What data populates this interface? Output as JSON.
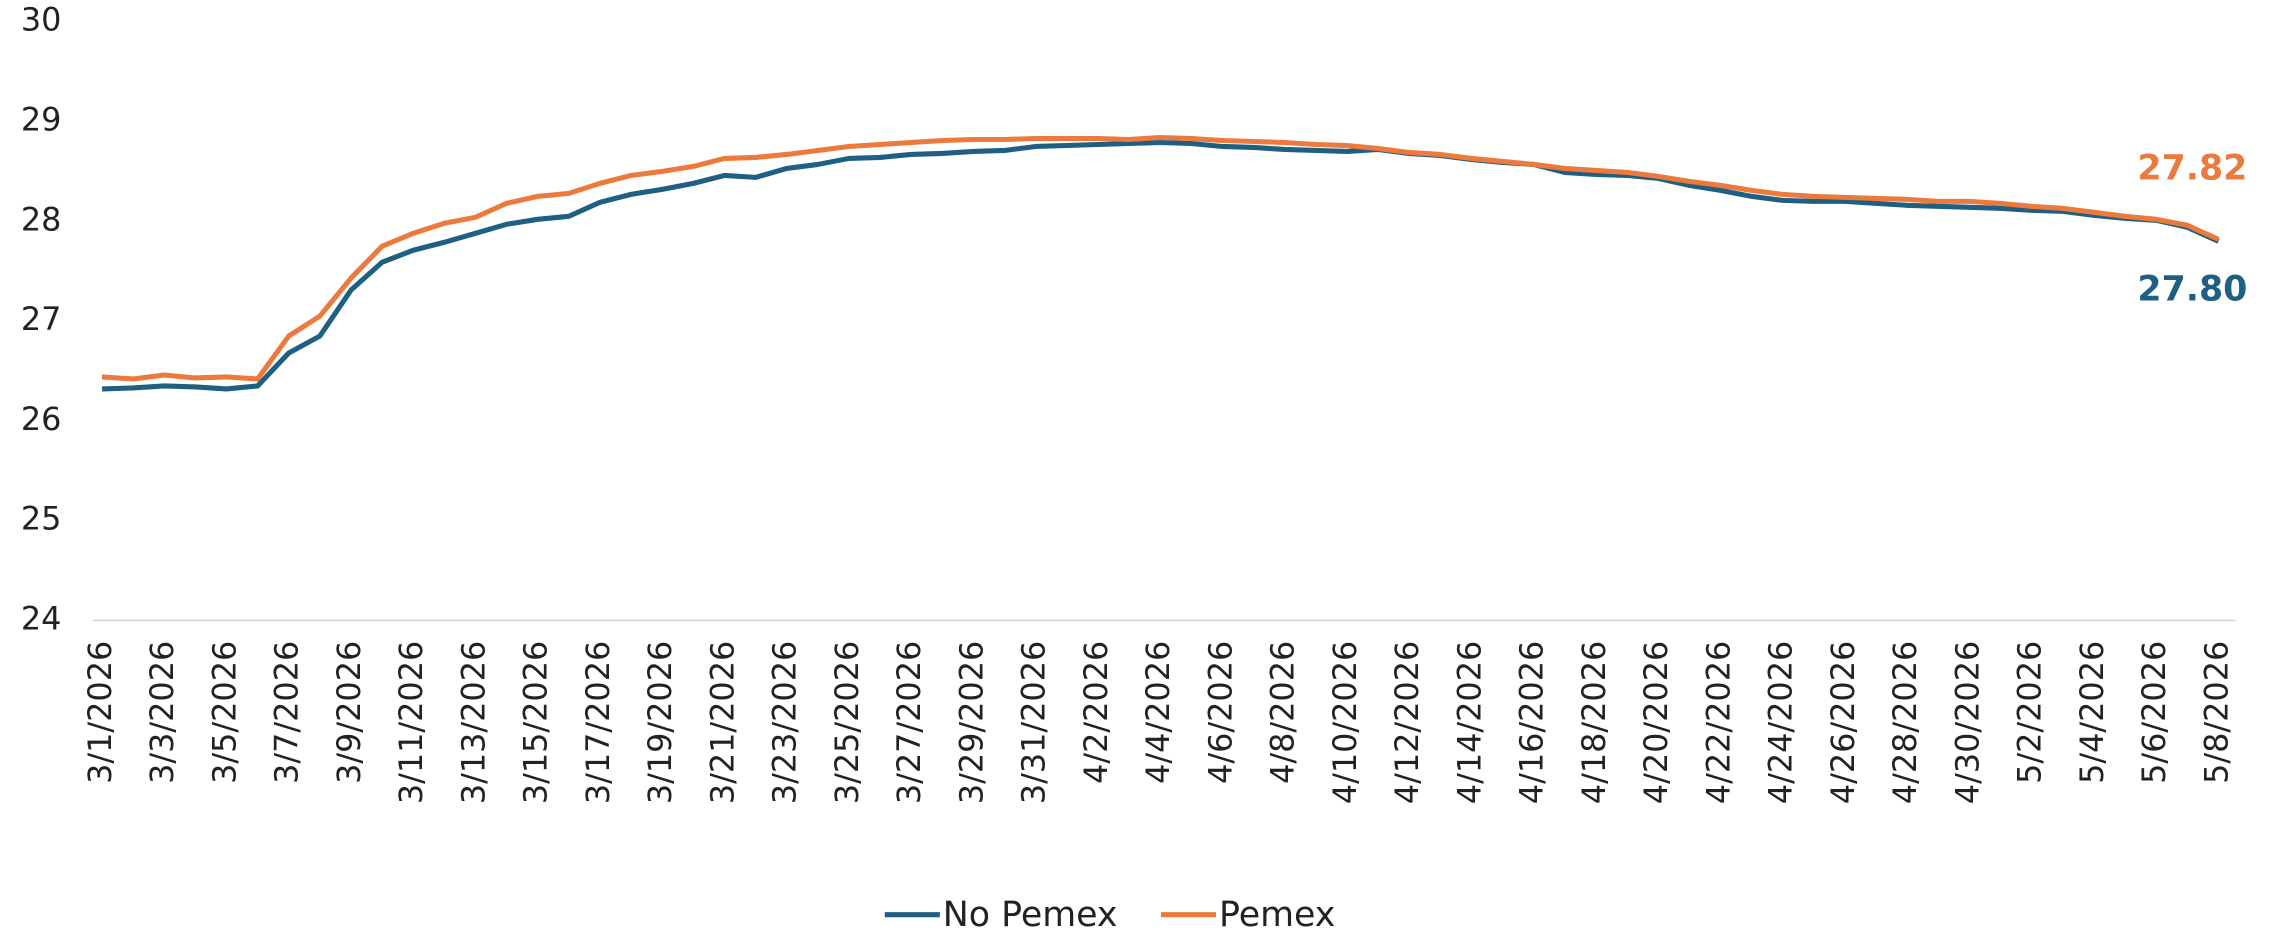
{
  "chart_data": {
    "type": "line",
    "categories": [
      "3/1/2026",
      null,
      "3/3/2026",
      null,
      "3/5/2026",
      null,
      "3/7/2026",
      null,
      "3/9/2026",
      null,
      "3/11/2026",
      null,
      "3/13/2026",
      null,
      "3/15/2026",
      null,
      "3/17/2026",
      null,
      "3/19/2026",
      null,
      "3/21/2026",
      null,
      "3/23/2026",
      null,
      "3/25/2026",
      null,
      "3/27/2026",
      null,
      "3/29/2026",
      null,
      "3/31/2026",
      null,
      "4/2/2026",
      null,
      "4/4/2026",
      null,
      "4/6/2026",
      null,
      "4/8/2026",
      null,
      "4/10/2026",
      null,
      "4/12/2026",
      null,
      "4/14/2026",
      null,
      "4/16/2026",
      null,
      "4/18/2026",
      null,
      "4/20/2026",
      null,
      "4/22/2026",
      null,
      "4/24/2026",
      null,
      "4/26/2026",
      null,
      "4/28/2026",
      null,
      "4/30/2026",
      null,
      "5/2/2026",
      null,
      "5/4/2026",
      null,
      "5/6/2026",
      null,
      "5/8/2026"
    ],
    "series": [
      {
        "name": "No Pemex",
        "color": "#1f5f82",
        "values": [
          26.32,
          26.33,
          26.35,
          26.34,
          26.32,
          26.35,
          26.68,
          26.85,
          27.31,
          27.59,
          27.71,
          27.79,
          27.88,
          27.97,
          28.02,
          28.05,
          28.19,
          28.27,
          28.32,
          28.38,
          28.46,
          28.44,
          28.53,
          28.57,
          28.63,
          28.64,
          28.67,
          28.68,
          28.7,
          28.71,
          28.75,
          28.76,
          28.77,
          28.78,
          28.79,
          28.78,
          28.75,
          28.74,
          28.72,
          28.71,
          28.7,
          28.72,
          28.68,
          28.66,
          28.62,
          28.59,
          28.57,
          28.49,
          28.47,
          28.46,
          28.43,
          28.36,
          28.31,
          28.25,
          28.21,
          28.2,
          28.2,
          28.18,
          28.16,
          28.15,
          28.14,
          28.13,
          28.11,
          28.1,
          28.06,
          28.03,
          28.01,
          27.94,
          27.8
        ],
        "value_labels": [
          null,
          null,
          null,
          null,
          null,
          null,
          null,
          null,
          null,
          null,
          null,
          null,
          null,
          null,
          null,
          null,
          null,
          null,
          null,
          null,
          null,
          null,
          null,
          null,
          null,
          null,
          null,
          null,
          null,
          null,
          null,
          null,
          null,
          null,
          null,
          null,
          null,
          null,
          null,
          null,
          null,
          null,
          null,
          null,
          null,
          null,
          null,
          null,
          null,
          null,
          null,
          null,
          null,
          null,
          null,
          null,
          null,
          null,
          null,
          null,
          null,
          null,
          null,
          null,
          null,
          null,
          null,
          null,
          "27.80"
        ]
      },
      {
        "name": "Pemex",
        "color": "#ec7a3c",
        "values": [
          26.44,
          26.42,
          26.46,
          26.43,
          26.44,
          26.42,
          26.85,
          27.05,
          27.43,
          27.75,
          27.88,
          27.98,
          28.04,
          28.18,
          28.25,
          28.28,
          28.38,
          28.46,
          28.5,
          28.55,
          28.63,
          28.64,
          28.67,
          28.71,
          28.75,
          28.77,
          28.79,
          28.81,
          28.82,
          28.82,
          28.83,
          28.83,
          28.83,
          28.82,
          28.84,
          28.83,
          28.81,
          28.8,
          28.79,
          28.77,
          28.76,
          28.73,
          28.69,
          28.67,
          28.63,
          28.6,
          28.57,
          28.53,
          28.51,
          28.49,
          28.45,
          28.4,
          28.36,
          28.31,
          28.27,
          28.25,
          28.24,
          28.23,
          28.22,
          28.2,
          28.2,
          28.18,
          28.15,
          28.13,
          28.09,
          28.05,
          28.02,
          27.96,
          27.82
        ],
        "value_labels": [
          null,
          null,
          null,
          null,
          null,
          null,
          null,
          null,
          null,
          null,
          null,
          null,
          null,
          null,
          null,
          null,
          null,
          null,
          null,
          null,
          null,
          null,
          null,
          null,
          null,
          null,
          null,
          null,
          null,
          null,
          null,
          null,
          null,
          null,
          null,
          null,
          null,
          null,
          null,
          null,
          null,
          null,
          null,
          null,
          null,
          null,
          null,
          null,
          null,
          null,
          null,
          null,
          null,
          null,
          null,
          null,
          null,
          null,
          null,
          null,
          null,
          null,
          null,
          null,
          null,
          null,
          null,
          null,
          "27.82"
        ]
      }
    ],
    "ylim": [
      24,
      30
    ],
    "yticks": [
      24,
      25,
      26,
      27,
      28,
      29,
      30
    ],
    "grid": false,
    "legend": "bottom"
  }
}
